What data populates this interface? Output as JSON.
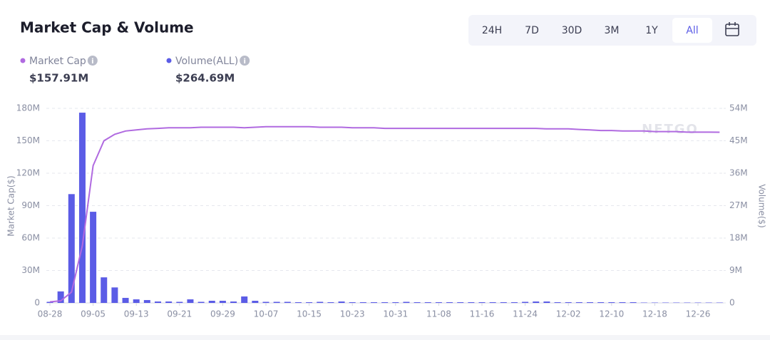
{
  "header": {
    "ranges": [
      "24H",
      "7D",
      "30D",
      "3M",
      "1Y",
      "All"
    ],
    "active_range": 5,
    "watermark": "NFTGO"
  },
  "chart_data": {
    "type": "combo",
    "title": "Market Cap & Volume",
    "categories": [
      "08-28",
      null,
      null,
      null,
      "09-05",
      null,
      null,
      null,
      "09-13",
      null,
      null,
      null,
      "09-21",
      null,
      null,
      null,
      "09-29",
      null,
      null,
      null,
      "10-07",
      null,
      null,
      null,
      "10-15",
      null,
      null,
      null,
      "10-23",
      null,
      null,
      null,
      "10-31",
      null,
      null,
      null,
      "11-08",
      null,
      null,
      null,
      "11-16",
      null,
      null,
      null,
      "11-24",
      null,
      null,
      null,
      "12-02",
      null,
      null,
      null,
      "12-10",
      null,
      null,
      null,
      "12-18",
      null,
      null,
      null,
      "12-26",
      null,
      null
    ],
    "series": [
      {
        "name": "Market Cap",
        "headline": "$157.91M",
        "type": "line",
        "axis": "y",
        "color": "#b06ae0",
        "values": [
          1,
          2,
          10,
          53,
          127,
          150,
          156,
          159,
          160,
          161,
          161.5,
          162,
          162,
          162,
          162.5,
          162.5,
          162.5,
          162.5,
          162,
          162.5,
          163,
          163,
          163,
          163,
          163,
          162.5,
          162.5,
          162.5,
          162,
          162,
          162,
          161.5,
          161.5,
          161.5,
          161.5,
          161.5,
          161.5,
          161.5,
          161.5,
          161.5,
          161.5,
          161.5,
          161.5,
          161.5,
          161.5,
          161.5,
          161,
          161,
          161,
          160.5,
          160,
          159.5,
          159.5,
          159,
          159,
          159,
          158.5,
          158.5,
          158.5,
          158,
          158,
          158,
          157.91
        ]
      },
      {
        "name": "Volume(ALL)",
        "headline": "$264.69M",
        "type": "bar",
        "axis": "y2",
        "color": "#5b5ce6",
        "values": [
          0.3,
          3.2,
          30.2,
          52.8,
          25.3,
          7.1,
          4.3,
          1.4,
          1.0,
          0.8,
          0.4,
          0.4,
          0.3,
          1.0,
          0.3,
          0.6,
          0.6,
          0.4,
          1.8,
          0.6,
          0.3,
          0.3,
          0.3,
          0.2,
          0.2,
          0.3,
          0.2,
          0.4,
          0.2,
          0.2,
          0.2,
          0.2,
          0.2,
          0.3,
          0.2,
          0.2,
          0.2,
          0.2,
          0.2,
          0.2,
          0.2,
          0.2,
          0.2,
          0.2,
          0.3,
          0.4,
          0.4,
          0.2,
          0.2,
          0.2,
          0.2,
          0.2,
          0.2,
          0.2,
          0.2,
          0.1,
          0.1,
          0.1,
          0.1,
          0.1,
          0.1,
          0.1,
          0.1
        ]
      }
    ],
    "ylabel": "Market Cap($)",
    "y2label": "Volume($)",
    "ylim": [
      0,
      180
    ],
    "yticks": [
      0,
      {
        "value": 30,
        "label": "30M"
      },
      {
        "value": 60,
        "label": "60M"
      },
      {
        "value": 90,
        "label": "90M"
      },
      {
        "value": 120,
        "label": "120M"
      },
      {
        "value": 150,
        "label": "150M"
      },
      {
        "value": 180,
        "label": "180M"
      }
    ],
    "y2lim": [
      0,
      54
    ],
    "y2ticks": [
      0,
      {
        "value": 9,
        "label": "9M"
      },
      {
        "value": 18,
        "label": "18M"
      },
      {
        "value": 27,
        "label": "27M"
      },
      {
        "value": 36,
        "label": "36M"
      },
      {
        "value": 45,
        "label": "45M"
      },
      {
        "value": 54,
        "label": "54M"
      }
    ],
    "grid": true
  }
}
